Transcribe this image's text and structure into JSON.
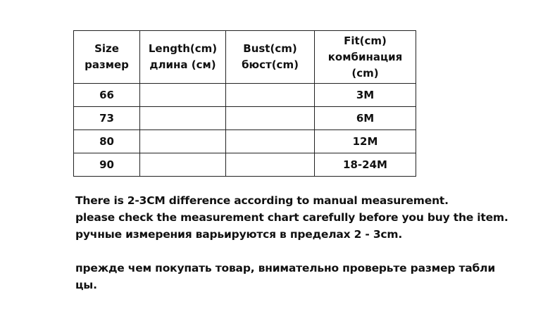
{
  "table": {
    "headers": [
      [
        "Size",
        "размер"
      ],
      [
        "Length(cm)",
        "длина (см)"
      ],
      [
        "Bust(cm)",
        "бюст(cm)"
      ],
      [
        "Fit(cm)",
        "комбинация",
        "(cm)"
      ]
    ],
    "rows": [
      [
        "66",
        "",
        "",
        "3M"
      ],
      [
        "73",
        "",
        "",
        "6M"
      ],
      [
        "80",
        "",
        "",
        "12M"
      ],
      [
        "90",
        "",
        "",
        "18-24M"
      ]
    ]
  },
  "notes": [
    "There is 2-3CM difference according to manual measurement.",
    "please check the measurement chart carefully before you buy the item.",
    "ручные измерения варьируются в пределах 2 - 3cm.",
    "прежде чем покупать товар, внимательно проверьте размер табли",
    "цы."
  ]
}
